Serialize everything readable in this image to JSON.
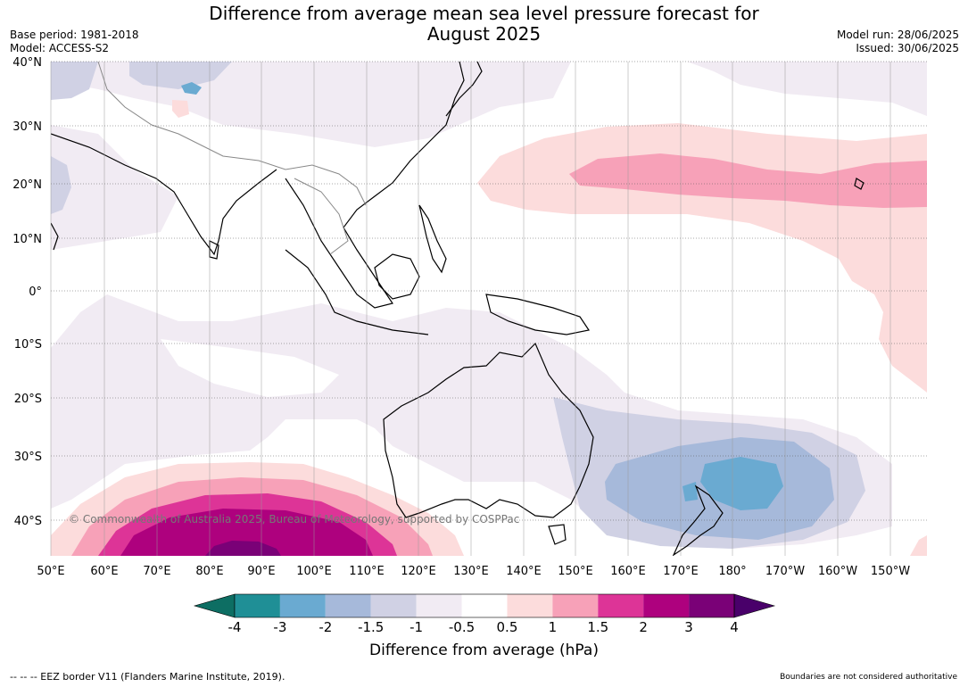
{
  "title_line1": "Difference from average mean sea level pressure forecast for",
  "title_line2": "August 2025",
  "meta_left": {
    "base_period": "Base period: 1981-2018",
    "model": "Model: ACCESS-S2"
  },
  "meta_right": {
    "model_run": "Model run: 28/06/2025",
    "issued": "Issued: 30/06/2025"
  },
  "lat_labels": [
    "40°N",
    "30°N",
    "20°N",
    "10°N",
    "0°",
    "10°S",
    "20°S",
    "30°S",
    "40°S"
  ],
  "lon_labels": [
    "50°E",
    "60°E",
    "70°E",
    "80°E",
    "90°E",
    "100°E",
    "110°E",
    "120°E",
    "130°E",
    "140°E",
    "150°E",
    "160°E",
    "170°E",
    "180°",
    "170°W",
    "160°W",
    "150°W"
  ],
  "copyright": "© Commonwealth of Australia 2025, Bureau of Meteorology, supported by COSPPac",
  "colorbar": {
    "ticks": [
      "-4",
      "-3",
      "-2",
      "-1.5",
      "-1",
      "-0.5",
      "0.5",
      "1",
      "1.5",
      "2",
      "3",
      "4"
    ],
    "colors": [
      "#0d6e63",
      "#1f8f96",
      "#6aaad1",
      "#a6b9da",
      "#d0d1e4",
      "#f1ebf3",
      "#ffffff",
      "#fcdcdc",
      "#f7a1b8",
      "#dd3497",
      "#ae017e",
      "#7a0177",
      "#49006a"
    ],
    "title": "Difference from average (hPa)"
  },
  "footer_left": "-- -- -- EEZ border V11 (Flanders Marine Institute, 2019).",
  "footer_right": "Boundaries are not considered authoritative"
}
